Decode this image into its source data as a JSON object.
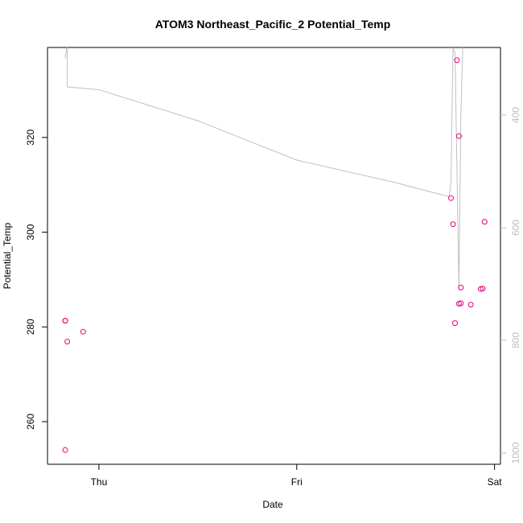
{
  "chart_data": {
    "type": "scatter",
    "title": "ATOM3 Northeast_Pacific_2 Potential_Temp",
    "xlabel": "Date",
    "ylabel": "Potential_Temp",
    "x_ticks": [
      "Thu",
      "Fri",
      "Sat"
    ],
    "x_tick_days": [
      0,
      1,
      2
    ],
    "xlim": [
      -0.26,
      2.03
    ],
    "ylim": [
      251,
      339
    ],
    "y_ticks": [
      260,
      280,
      300,
      320
    ],
    "y2_ticks": [
      400,
      600,
      800,
      1000
    ],
    "y2lim": [
      1020,
      280
    ],
    "grid": false,
    "series": [
      {
        "kind": "points",
        "color": "#e6007e",
        "x": [
          -0.17,
          -0.16,
          -0.08,
          -0.17,
          1.78,
          1.8,
          1.79,
          1.81,
          1.82,
          1.82,
          1.83,
          1.83,
          1.88,
          1.93,
          1.94,
          1.95,
          -0.17
        ],
        "values": [
          281.3,
          276.9,
          279.0,
          254.0,
          307.2,
          280.8,
          301.7,
          336.3,
          320.3,
          284.9,
          288.3,
          285.0,
          284.7,
          288.0,
          288.1,
          302.2,
          281.3
        ]
      },
      {
        "kind": "line",
        "color": "#c0c0c0",
        "axis": "right",
        "x": [
          -0.17,
          -0.16,
          -0.16,
          -0.16,
          -0.16,
          0.0,
          0.5,
          1.0,
          1.5,
          1.77,
          1.78,
          1.79,
          1.8,
          1.82,
          1.83,
          1.84
        ],
        "values": [
          300,
          270,
          270,
          270,
          350,
          355,
          410,
          480,
          520,
          545,
          520,
          280,
          290,
          710,
          400,
          270
        ]
      }
    ]
  }
}
